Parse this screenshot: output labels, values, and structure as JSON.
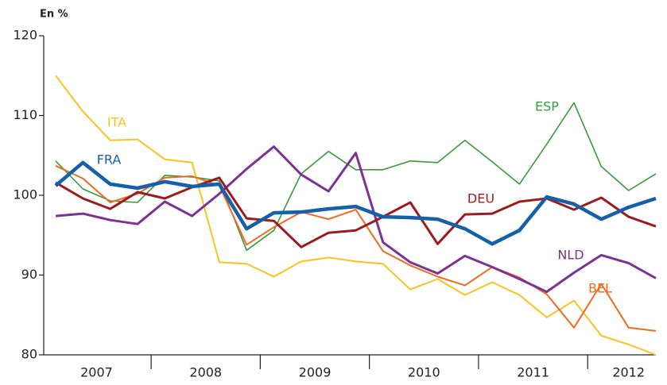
{
  "chart_data": {
    "type": "line",
    "ylabel": "En %",
    "categories": [
      "2007",
      null,
      null,
      null,
      "2008",
      null,
      null,
      null,
      "2009",
      null,
      null,
      null,
      "2010",
      null,
      null,
      null,
      "2011",
      null,
      null,
      null,
      "2012",
      null,
      null
    ],
    "ylim": [
      80,
      120
    ],
    "yticks": [
      80,
      90,
      100,
      110,
      120
    ],
    "series": [
      {
        "name": "ITA",
        "color": "#f9c31f",
        "values": [
          115,
          110.5,
          106.9,
          107,
          104.5,
          104.1,
          91.6,
          91.4,
          89.8,
          91.7,
          92.2,
          91.7,
          91.4,
          88.2,
          89.5,
          87.5,
          89.1,
          87.5,
          84.7,
          86.8,
          82.4,
          81.3,
          80
        ]
      },
      {
        "name": "ESP",
        "color": "#3a9a3a",
        "values": [
          104.3,
          100.8,
          99.3,
          99.1,
          102.5,
          102.3,
          101.8,
          93.1,
          95.6,
          102.7,
          105.5,
          103.2,
          103.2,
          104.3,
          104.1,
          106.9,
          104.2,
          101.4,
          106.4,
          111.6,
          103.6,
          100.6,
          102.7
        ]
      },
      {
        "name": "BEL",
        "color": "#f06a22",
        "values": [
          103.7,
          102.1,
          99.1,
          100.2,
          102.2,
          102.4,
          101.2,
          93.8,
          96,
          97.9,
          97,
          98.2,
          93,
          91.2,
          89.8,
          88.7,
          91,
          89.7,
          87.6,
          83.4,
          88.9,
          83.4,
          83
        ]
      },
      {
        "name": "NLD",
        "color": "#7b3293",
        "values": [
          97.4,
          97.7,
          96.9,
          96.4,
          99.2,
          97.4,
          100.2,
          103.3,
          106.1,
          102.6,
          100.5,
          105.3,
          94.1,
          91.6,
          90.2,
          92.4,
          91,
          89.5,
          87.9,
          90.3,
          92.5,
          91.5,
          89.6
        ]
      },
      {
        "name": "DEU",
        "color": "#9b1b1e",
        "values": [
          101.6,
          99.6,
          98.3,
          100.4,
          99.6,
          101,
          102.2,
          97.1,
          96.8,
          93.5,
          95.3,
          95.6,
          97.3,
          99.1,
          93.9,
          97.6,
          97.7,
          99.2,
          99.6,
          98.2,
          99.7,
          97.3,
          96.1
        ]
      },
      {
        "name": "FRA",
        "color": "#1560a8",
        "values": [
          101.2,
          104.1,
          101.4,
          100.9,
          101.7,
          101.1,
          101.4,
          95.8,
          97.8,
          97.9,
          98.3,
          98.6,
          97.3,
          97.2,
          97,
          95.8,
          93.9,
          95.6,
          99.8,
          98.9,
          97,
          98.5,
          99.6
        ]
      }
    ]
  }
}
